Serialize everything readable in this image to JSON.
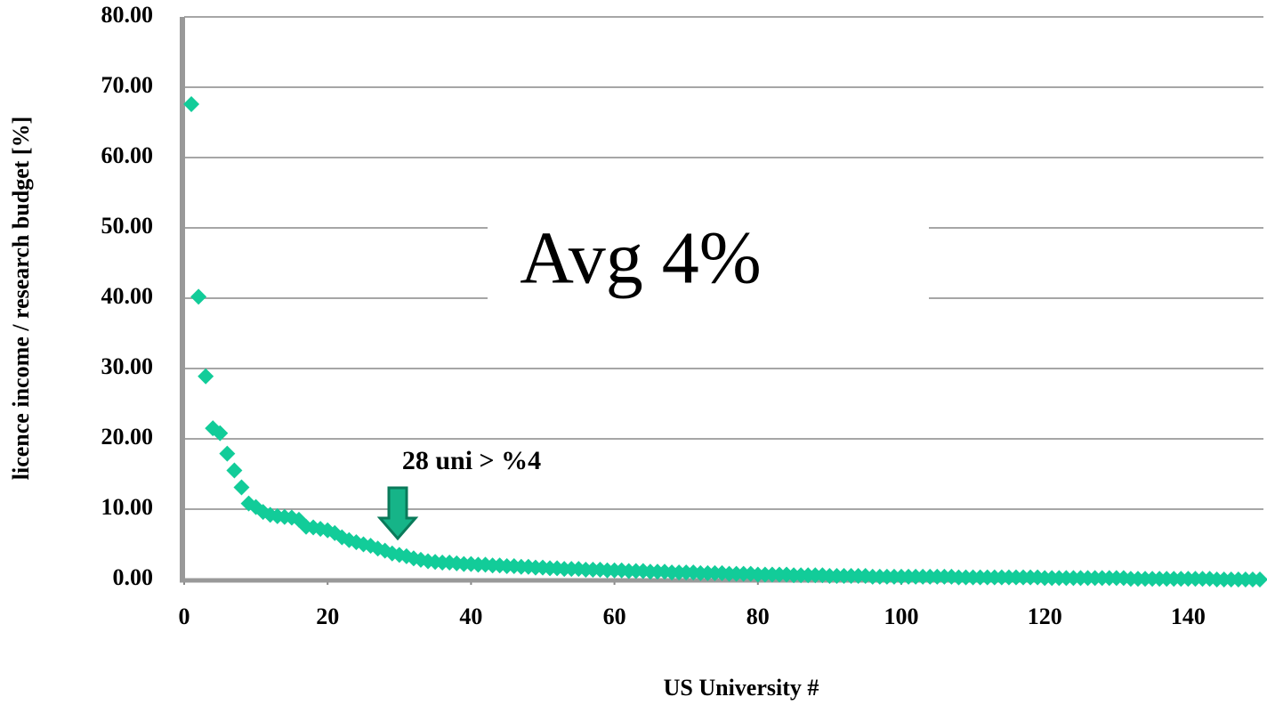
{
  "chart_data": {
    "type": "scatter",
    "y_label": "licence income / research budget [%]",
    "x_label": "US University #",
    "annotations": [
      "Avg 4%",
      "28 uni > %4"
    ],
    "color": "#12cc99",
    "grid": true,
    "xlim": [
      0,
      150
    ],
    "ylim": [
      0,
      80
    ],
    "xticks": [
      0,
      20,
      40,
      60,
      80,
      100,
      120,
      140
    ],
    "yticks": [
      {
        "value": 0,
        "label": "0.00"
      },
      {
        "value": 10,
        "label": "10.00"
      },
      {
        "value": 20,
        "label": "20.00"
      },
      {
        "value": 30,
        "label": "30.00"
      },
      {
        "value": 40,
        "label": "40.00"
      },
      {
        "value": 50,
        "label": "50.00"
      },
      {
        "value": 60,
        "label": "60.00"
      },
      {
        "value": 70,
        "label": "70.00"
      },
      {
        "value": 80,
        "label": "80.00"
      }
    ],
    "x": [
      1,
      2,
      3,
      4,
      5,
      6,
      7,
      8,
      9,
      10,
      11,
      12,
      13,
      14,
      15,
      16,
      17,
      18,
      19,
      20,
      21,
      22,
      23,
      24,
      25,
      26,
      27,
      28,
      29,
      30,
      31,
      32,
      33,
      34,
      35,
      36,
      37,
      38,
      39,
      40,
      41,
      42,
      43,
      44,
      45,
      46,
      47,
      48,
      49,
      50,
      51,
      52,
      53,
      54,
      55,
      56,
      57,
      58,
      59,
      60,
      61,
      62,
      63,
      64,
      65,
      66,
      67,
      68,
      69,
      70,
      71,
      72,
      73,
      74,
      75,
      76,
      77,
      78,
      79,
      80,
      81,
      82,
      83,
      84,
      85,
      86,
      87,
      88,
      89,
      90,
      91,
      92,
      93,
      94,
      95,
      96,
      97,
      98,
      99,
      100,
      101,
      102,
      103,
      104,
      105,
      106,
      107,
      108,
      109,
      110,
      111,
      112,
      113,
      114,
      115,
      116,
      117,
      118,
      119,
      120,
      121,
      122,
      123,
      124,
      125,
      126,
      127,
      128,
      129,
      130,
      131,
      132,
      133,
      134,
      135,
      136,
      137,
      138,
      139,
      140,
      141,
      142,
      143,
      144,
      145,
      146,
      147,
      148,
      149,
      150
    ],
    "values": [
      67.6,
      40.2,
      28.9,
      21.5,
      20.8,
      17.9,
      15.5,
      13.1,
      10.8,
      10.3,
      9.6,
      9.2,
      9.0,
      8.9,
      8.8,
      8.5,
      7.5,
      7.4,
      7.2,
      7.0,
      6.6,
      6.0,
      5.6,
      5.3,
      5.0,
      4.8,
      4.4,
      4.1,
      3.7,
      3.5,
      3.3,
      3.0,
      2.8,
      2.6,
      2.5,
      2.4,
      2.4,
      2.3,
      2.2,
      2.2,
      2.1,
      2.1,
      2.0,
      2.0,
      1.9,
      1.9,
      1.8,
      1.8,
      1.7,
      1.7,
      1.6,
      1.6,
      1.5,
      1.5,
      1.5,
      1.4,
      1.4,
      1.4,
      1.3,
      1.3,
      1.3,
      1.2,
      1.2,
      1.2,
      1.1,
      1.1,
      1.1,
      1.0,
      1.0,
      1.0,
      1.0,
      0.9,
      0.9,
      0.9,
      0.9,
      0.8,
      0.8,
      0.8,
      0.8,
      0.7,
      0.7,
      0.7,
      0.7,
      0.7,
      0.6,
      0.6,
      0.6,
      0.6,
      0.6,
      0.5,
      0.5,
      0.5,
      0.5,
      0.5,
      0.5,
      0.4,
      0.4,
      0.4,
      0.4,
      0.4,
      0.4,
      0.4,
      0.4,
      0.4,
      0.4,
      0.4,
      0.4,
      0.3,
      0.3,
      0.3,
      0.3,
      0.3,
      0.3,
      0.3,
      0.3,
      0.3,
      0.3,
      0.3,
      0.3,
      0.2,
      0.2,
      0.2,
      0.2,
      0.2,
      0.2,
      0.2,
      0.2,
      0.2,
      0.2,
      0.2,
      0.2,
      0.1,
      0.1,
      0.1,
      0.1,
      0.1,
      0.1,
      0.1,
      0.1,
      0.1,
      0.1,
      0.1,
      0.1,
      0.0,
      0.0,
      0.0,
      0.0,
      0.0,
      0.0,
      0.0
    ]
  }
}
